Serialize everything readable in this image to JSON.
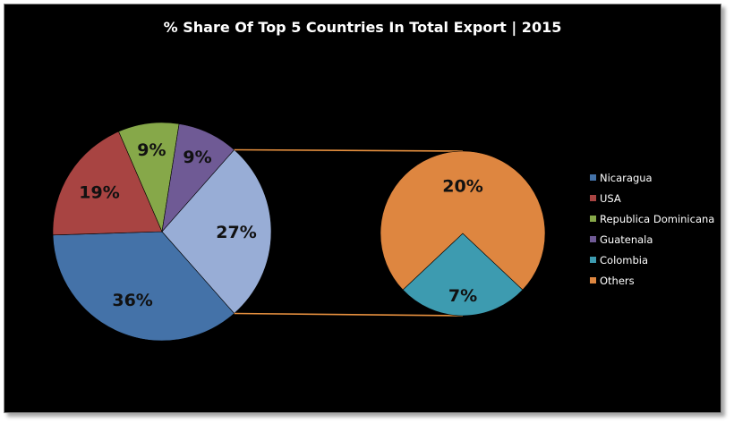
{
  "chart_data": {
    "type": "pie",
    "subtype": "pie-of-pie",
    "title": "% Share Of Top 5 Countries In Total Export | 2015",
    "main_pie": [
      {
        "name": "Nicaragua",
        "value": 36,
        "label": "36%",
        "color": "#4472a8"
      },
      {
        "name": "USA",
        "value": 19,
        "label": "19%",
        "color": "#a84442"
      },
      {
        "name": "Republica Dominicana",
        "value": 9,
        "label": "9%",
        "color": "#86a849"
      },
      {
        "name": "Guatenala",
        "value": 9,
        "label": "9%",
        "color": "#6f5a95"
      },
      {
        "name": "Other",
        "value": 27,
        "label": "27%",
        "color": "#98add6"
      }
    ],
    "secondary_pie": [
      {
        "name": "Colombia",
        "value": 7,
        "label": "7%",
        "color": "#3d9bb0"
      },
      {
        "name": "Others",
        "value": 20,
        "label": "20%",
        "color": "#de8640"
      }
    ],
    "legend": {
      "position": "right",
      "items": [
        {
          "label": "Nicaragua",
          "color": "#4472a8"
        },
        {
          "label": "USA",
          "color": "#a84442"
        },
        {
          "label": "Republica Dominicana",
          "color": "#86a849"
        },
        {
          "label": "Guatenala",
          "color": "#6f5a95"
        },
        {
          "label": "Colombia",
          "color": "#3d9bb0"
        },
        {
          "label": "Others",
          "color": "#de8640"
        }
      ]
    },
    "connector_color": "#e8913f",
    "background": "#000000"
  }
}
